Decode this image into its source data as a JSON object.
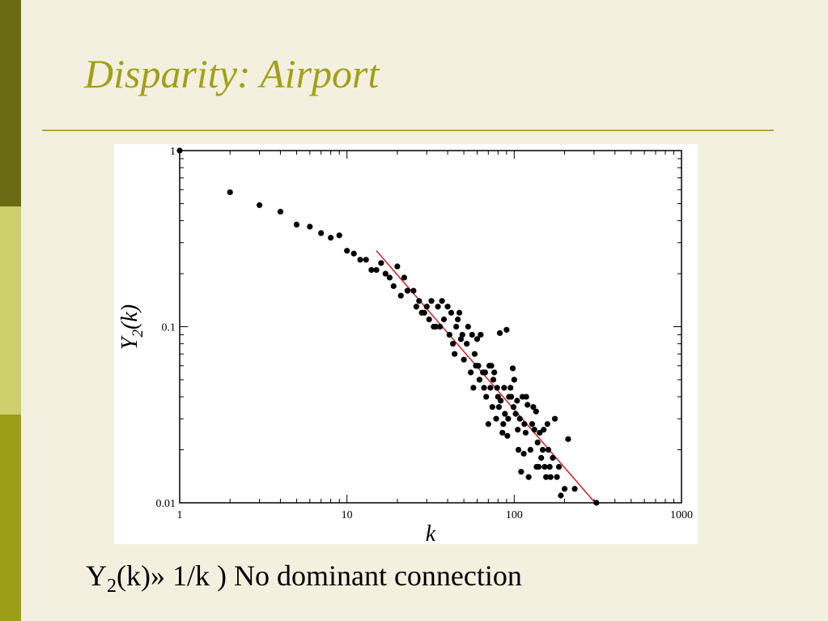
{
  "slide": {
    "title": "Disparity: Airport",
    "caption": {
      "y_letter": "Y",
      "y_sub": "2",
      "rest": "(k)» 1/k ) No dominant connection"
    }
  },
  "chart_data": {
    "type": "scatter",
    "xlabel": "k",
    "ylabel_main": "Y",
    "ylabel_sub": "2",
    "ylabel_rest": "(k)",
    "x_scale": "log",
    "y_scale": "log",
    "xlim": [
      1,
      1000
    ],
    "ylim": [
      0.01,
      1
    ],
    "x_ticks": [
      "1",
      "10",
      "100",
      "1000"
    ],
    "y_ticks": [
      "0.01",
      "0.1",
      "1"
    ],
    "fit_line": {
      "x": [
        15,
        310
      ],
      "y": [
        0.27,
        0.0098
      ],
      "color": "#d42020"
    },
    "points": [
      [
        1,
        1.0
      ],
      [
        2,
        0.58
      ],
      [
        3,
        0.49
      ],
      [
        4,
        0.45
      ],
      [
        5,
        0.38
      ],
      [
        6,
        0.37
      ],
      [
        7,
        0.34
      ],
      [
        8,
        0.32
      ],
      [
        9,
        0.33
      ],
      [
        10,
        0.27
      ],
      [
        11,
        0.26
      ],
      [
        12,
        0.24
      ],
      [
        13,
        0.24
      ],
      [
        14,
        0.21
      ],
      [
        15,
        0.21
      ],
      [
        16,
        0.23
      ],
      [
        17,
        0.2
      ],
      [
        18,
        0.19
      ],
      [
        19,
        0.17
      ],
      [
        20,
        0.22
      ],
      [
        21,
        0.15
      ],
      [
        22,
        0.19
      ],
      [
        23,
        0.16
      ],
      [
        25,
        0.16
      ],
      [
        26,
        0.13
      ],
      [
        27,
        0.14
      ],
      [
        28,
        0.12
      ],
      [
        29,
        0.12
      ],
      [
        30,
        0.13
      ],
      [
        31,
        0.11
      ],
      [
        32,
        0.14
      ],
      [
        33,
        0.1
      ],
      [
        34,
        0.1
      ],
      [
        35,
        0.13
      ],
      [
        36,
        0.1
      ],
      [
        37,
        0.14
      ],
      [
        38,
        0.11
      ],
      [
        40,
        0.13
      ],
      [
        41,
        0.09
      ],
      [
        42,
        0.12
      ],
      [
        43,
        0.08
      ],
      [
        44,
        0.07
      ],
      [
        45,
        0.1
      ],
      [
        46,
        0.11
      ],
      [
        47,
        0.12
      ],
      [
        48,
        0.085
      ],
      [
        49,
        0.09
      ],
      [
        50,
        0.065
      ],
      [
        52,
        0.08
      ],
      [
        53,
        0.1
      ],
      [
        55,
        0.055
      ],
      [
        56,
        0.09
      ],
      [
        57,
        0.045
      ],
      [
        58,
        0.07
      ],
      [
        59,
        0.06
      ],
      [
        60,
        0.085
      ],
      [
        61,
        0.06
      ],
      [
        62,
        0.05
      ],
      [
        63,
        0.09
      ],
      [
        65,
        0.055
      ],
      [
        66,
        0.045
      ],
      [
        67,
        0.055
      ],
      [
        68,
        0.04
      ],
      [
        70,
        0.028
      ],
      [
        71,
        0.06
      ],
      [
        72,
        0.045
      ],
      [
        73,
        0.06
      ],
      [
        74,
        0.035
      ],
      [
        75,
        0.05
      ],
      [
        76,
        0.055
      ],
      [
        78,
        0.03
      ],
      [
        79,
        0.045
      ],
      [
        80,
        0.04
      ],
      [
        81,
        0.035
      ],
      [
        82,
        0.092
      ],
      [
        83,
        0.038
      ],
      [
        85,
        0.025
      ],
      [
        86,
        0.028
      ],
      [
        87,
        0.045
      ],
      [
        88,
        0.032
      ],
      [
        90,
        0.096
      ],
      [
        91,
        0.024
      ],
      [
        92,
        0.03
      ],
      [
        93,
        0.04
      ],
      [
        95,
        0.045
      ],
      [
        96,
        0.04
      ],
      [
        98,
        0.058
      ],
      [
        99,
        0.035
      ],
      [
        100,
        0.05
      ],
      [
        102,
        0.032
      ],
      [
        104,
        0.038
      ],
      [
        105,
        0.026
      ],
      [
        106,
        0.02
      ],
      [
        108,
        0.03
      ],
      [
        110,
        0.015
      ],
      [
        112,
        0.04
      ],
      [
        114,
        0.019
      ],
      [
        115,
        0.028
      ],
      [
        117,
        0.025
      ],
      [
        118,
        0.04
      ],
      [
        120,
        0.036
      ],
      [
        122,
        0.014
      ],
      [
        125,
        0.02
      ],
      [
        128,
        0.028
      ],
      [
        130,
        0.035
      ],
      [
        132,
        0.026
      ],
      [
        135,
        0.033
      ],
      [
        136,
        0.016
      ],
      [
        138,
        0.022
      ],
      [
        140,
        0.016
      ],
      [
        142,
        0.025
      ],
      [
        145,
        0.018
      ],
      [
        148,
        0.02
      ],
      [
        150,
        0.026
      ],
      [
        152,
        0.016
      ],
      [
        155,
        0.014
      ],
      [
        158,
        0.028
      ],
      [
        160,
        0.02
      ],
      [
        163,
        0.016
      ],
      [
        165,
        0.014
      ],
      [
        170,
        0.018
      ],
      [
        175,
        0.03
      ],
      [
        180,
        0.014
      ],
      [
        185,
        0.016
      ],
      [
        190,
        0.011
      ],
      [
        200,
        0.012
      ],
      [
        210,
        0.023
      ],
      [
        230,
        0.012
      ],
      [
        310,
        0.01
      ]
    ]
  }
}
